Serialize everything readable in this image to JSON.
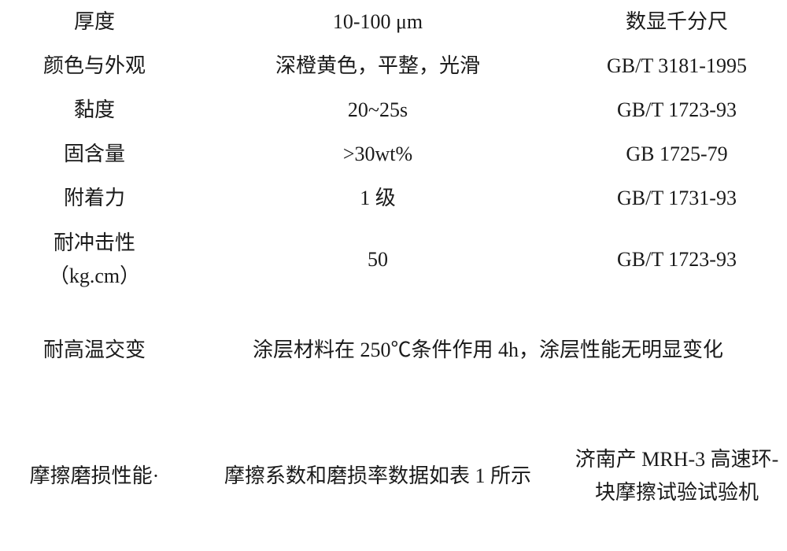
{
  "table": {
    "type": "table",
    "background_color": "#ffffff",
    "text_color": "#1a1a1a",
    "font_family": "SimSun",
    "font_size_pt": 20,
    "line_height": 1.6,
    "column_widths_pct": [
      24,
      48,
      28
    ],
    "column_align": [
      "center",
      "center",
      "center"
    ],
    "rows": [
      {
        "c1": "厚度",
        "c2": "10-100 μm",
        "c3": "数显千分尺"
      },
      {
        "c1": "颜色与外观",
        "c2": "深橙黄色，平整，光滑",
        "c3": "GB/T 3181-1995"
      },
      {
        "c1": "黏度",
        "c2": "20~25s",
        "c3": "GB/T 1723-93"
      },
      {
        "c1": "固含量",
        "c2": ">30wt%",
        "c3": "GB 1725-79"
      },
      {
        "c1": "附着力",
        "c2": "1 级",
        "c3": "GB/T 1731-93"
      },
      {
        "c1": "耐冲击性\n（kg.cm）",
        "c2": "50",
        "c3": "GB/T 1723-93"
      },
      {
        "c1": "耐高温交变",
        "c2": "涂层材料在 250℃条件作用 4h，涂层性能无明显变化",
        "c3": ""
      },
      {
        "c1": "摩擦磨损性能·",
        "c2": "摩擦系数和磨损率数据如表 1 所示",
        "c3": "济南产 MRH-3 高速环-块摩擦试验试验机"
      }
    ]
  }
}
